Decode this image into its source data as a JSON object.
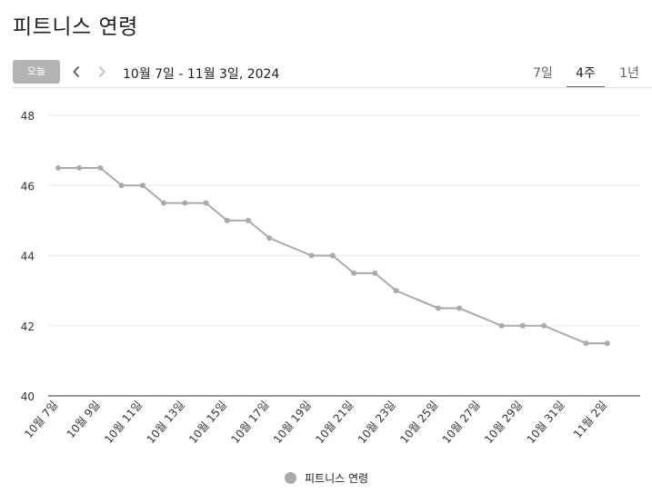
{
  "page": {
    "title": "피트니스 연령"
  },
  "toolbar": {
    "today_label": "오늘",
    "prev_icon": "chevron-left-icon",
    "next_icon": "chevron-right-icon",
    "date_range": "10월 7일 - 11월 3일, 2024"
  },
  "tabs": [
    {
      "label": "7일",
      "selected": false
    },
    {
      "label": "4주",
      "selected": true
    },
    {
      "label": "1년",
      "selected": false
    }
  ],
  "colors": {
    "series": "#aaaaaa",
    "accent": "#1a73e8",
    "grid": "#e8e8e8"
  },
  "chart_data": {
    "type": "line",
    "title": "",
    "xlabel": "",
    "ylabel": "",
    "ylim": [
      40,
      48
    ],
    "yticks": [
      40,
      42,
      44,
      46,
      48
    ],
    "grid": true,
    "legend_position": "bottom",
    "x": [
      "10월 7일",
      "10월 8일",
      "10월 9일",
      "10월 10일",
      "10월 11일",
      "10월 12일",
      "10월 13일",
      "10월 14일",
      "10월 15일",
      "10월 16일",
      "10월 17일",
      "10월 19일",
      "10월 20일",
      "10월 21일",
      "10월 22일",
      "10월 23일",
      "10월 25일",
      "10월 26일",
      "10월 28일",
      "10월 29일",
      "10월 30일",
      "11월 1일",
      "11월 2일"
    ],
    "xtick_labels": [
      "10월 7일",
      "10월 9일",
      "10월 11일",
      "10월 13일",
      "10월 15일",
      "10월 17일",
      "10월 19일",
      "10월 21일",
      "10월 23일",
      "10월 25일",
      "10월 27일",
      "10월 29일",
      "10월 31일",
      "11월 2일"
    ],
    "series": [
      {
        "name": "피트니스 연령",
        "values": [
          46.5,
          46.5,
          46.5,
          46.0,
          46.0,
          45.5,
          45.5,
          45.5,
          45.0,
          45.0,
          44.5,
          44.0,
          44.0,
          43.5,
          43.5,
          43.0,
          42.5,
          42.5,
          42.0,
          42.0,
          42.0,
          41.5,
          41.5
        ]
      }
    ]
  }
}
